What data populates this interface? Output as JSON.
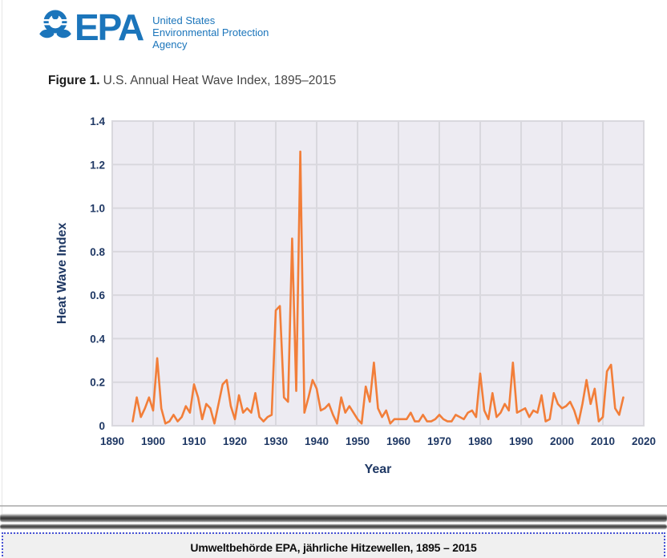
{
  "header": {
    "logo_word": "EPA",
    "agency_lines": [
      "United States",
      "Environmental Protection",
      "Agency"
    ],
    "logo_color": "#1B75BB"
  },
  "figure": {
    "label": "Figure 1.",
    "title": "U.S. Annual Heat Wave Index, 1895–2015"
  },
  "chart_data": {
    "type": "line",
    "title": "U.S. Annual Heat Wave Index, 1895–2015",
    "xlabel": "Year",
    "ylabel": "Heat Wave Index",
    "xlim": [
      1890,
      2020
    ],
    "ylim": [
      0,
      1.4
    ],
    "x_ticks": [
      "1890",
      "1900",
      "1910",
      "1920",
      "1930",
      "1940",
      "1950",
      "1960",
      "1970",
      "1980",
      "1990",
      "2000",
      "2010",
      "2020"
    ],
    "y_ticks": [
      "0",
      "0.2",
      "0.4",
      "0.6",
      "0.8",
      "1.0",
      "1.2",
      "1.4"
    ],
    "grid": true,
    "legend": "none",
    "line_color": "#F27E39",
    "plot_bg": "#EDEBF2",
    "grid_color": "#D9D8DE",
    "axis_text_color": "#1F3864",
    "series": [
      {
        "name": "Heat Wave Index",
        "x": [
          1895,
          1896,
          1897,
          1898,
          1899,
          1900,
          1901,
          1902,
          1903,
          1904,
          1905,
          1906,
          1907,
          1908,
          1909,
          1910,
          1911,
          1912,
          1913,
          1914,
          1915,
          1916,
          1917,
          1918,
          1919,
          1920,
          1921,
          1922,
          1923,
          1924,
          1925,
          1926,
          1927,
          1928,
          1929,
          1930,
          1931,
          1932,
          1933,
          1934,
          1935,
          1936,
          1937,
          1938,
          1939,
          1940,
          1941,
          1942,
          1943,
          1944,
          1945,
          1946,
          1947,
          1948,
          1949,
          1950,
          1951,
          1952,
          1953,
          1954,
          1955,
          1956,
          1957,
          1958,
          1959,
          1960,
          1961,
          1962,
          1963,
          1964,
          1965,
          1966,
          1967,
          1968,
          1969,
          1970,
          1971,
          1972,
          1973,
          1974,
          1975,
          1976,
          1977,
          1978,
          1979,
          1980,
          1981,
          1982,
          1983,
          1984,
          1985,
          1986,
          1987,
          1988,
          1989,
          1990,
          1991,
          1992,
          1993,
          1994,
          1995,
          1996,
          1997,
          1998,
          1999,
          2000,
          2001,
          2002,
          2003,
          2004,
          2005,
          2006,
          2007,
          2008,
          2009,
          2010,
          2011,
          2012,
          2013,
          2014,
          2015
        ],
        "values": [
          0.02,
          0.13,
          0.04,
          0.08,
          0.13,
          0.07,
          0.31,
          0.08,
          0.01,
          0.02,
          0.05,
          0.02,
          0.04,
          0.09,
          0.06,
          0.19,
          0.13,
          0.03,
          0.1,
          0.08,
          0.01,
          0.1,
          0.19,
          0.21,
          0.09,
          0.03,
          0.14,
          0.06,
          0.08,
          0.06,
          0.15,
          0.04,
          0.02,
          0.04,
          0.05,
          0.53,
          0.55,
          0.13,
          0.11,
          0.86,
          0.16,
          1.26,
          0.06,
          0.13,
          0.21,
          0.17,
          0.07,
          0.08,
          0.1,
          0.05,
          0.01,
          0.13,
          0.06,
          0.09,
          0.06,
          0.03,
          0.01,
          0.18,
          0.11,
          0.29,
          0.08,
          0.04,
          0.07,
          0.01,
          0.03,
          0.03,
          0.03,
          0.03,
          0.06,
          0.02,
          0.02,
          0.05,
          0.02,
          0.02,
          0.03,
          0.05,
          0.03,
          0.02,
          0.02,
          0.05,
          0.04,
          0.03,
          0.06,
          0.07,
          0.04,
          0.24,
          0.07,
          0.03,
          0.15,
          0.04,
          0.06,
          0.1,
          0.07,
          0.29,
          0.06,
          0.07,
          0.08,
          0.04,
          0.07,
          0.06,
          0.14,
          0.02,
          0.03,
          0.15,
          0.1,
          0.08,
          0.09,
          0.11,
          0.07,
          0.01,
          0.1,
          0.21,
          0.1,
          0.17,
          0.02,
          0.04,
          0.25,
          0.28,
          0.08,
          0.05,
          0.13
        ]
      }
    ]
  },
  "caption": {
    "text": "Umweltbehörde EPA, jährliche Hitzewellen, 1895 – 2015"
  }
}
